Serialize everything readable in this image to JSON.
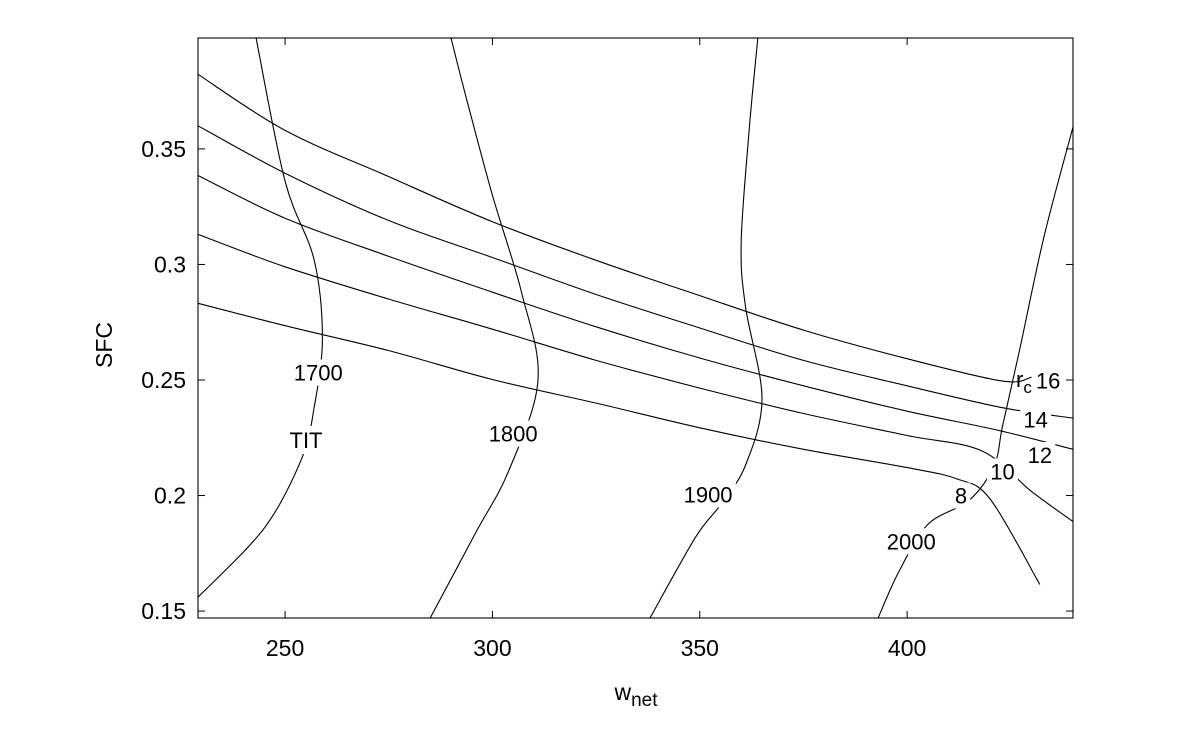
{
  "chart_data": {
    "type": "line",
    "xlabel": "w",
    "xlabel_sub": "net",
    "ylabel": "SFC",
    "xlim": [
      229,
      440
    ],
    "ylim": [
      0.147,
      0.398
    ],
    "x_ticks": [
      250,
      300,
      350,
      400
    ],
    "x_tick_labels": [
      "250",
      "300",
      "350",
      "400"
    ],
    "y_ticks": [
      0.15,
      0.2,
      0.25,
      0.3,
      0.35
    ],
    "y_tick_labels": [
      "0.15",
      "0.2",
      "0.25",
      "0.3",
      "0.35"
    ],
    "grid": false,
    "rc_family_label": "r",
    "rc_family_label_sub": "c",
    "tit_family_label": "TIT",
    "series": [
      {
        "group": "rc",
        "name": "8",
        "points": [
          [
            229,
            0.2832
          ],
          [
            250,
            0.2735
          ],
          [
            275,
            0.2627
          ],
          [
            300,
            0.2502
          ],
          [
            325,
            0.24
          ],
          [
            350,
            0.2293
          ],
          [
            375,
            0.22
          ],
          [
            400,
            0.2121
          ],
          [
            412,
            0.2072
          ],
          [
            420,
            0.1985
          ],
          [
            432,
            0.1615
          ]
        ],
        "label": "8",
        "label_at": [
          413,
          0.2
        ]
      },
      {
        "group": "rc",
        "name": "10",
        "points": [
          [
            229,
            0.313
          ],
          [
            250,
            0.299
          ],
          [
            275,
            0.285
          ],
          [
            300,
            0.272
          ],
          [
            325,
            0.2585
          ],
          [
            350,
            0.2465
          ],
          [
            375,
            0.2355
          ],
          [
            400,
            0.226
          ],
          [
            418,
            0.2193
          ],
          [
            430,
            0.2018
          ],
          [
            440,
            0.1887
          ]
        ],
        "label": "10",
        "label_at": [
          423,
          0.2104
        ]
      },
      {
        "group": "rc",
        "name": "12",
        "points": [
          [
            229,
            0.3385
          ],
          [
            250,
            0.32
          ],
          [
            275,
            0.3035
          ],
          [
            300,
            0.288
          ],
          [
            325,
            0.273
          ],
          [
            350,
            0.2595
          ],
          [
            375,
            0.2475
          ],
          [
            400,
            0.2365
          ],
          [
            422,
            0.2282
          ],
          [
            440,
            0.22
          ]
        ],
        "label": "12",
        "label_at": [
          432,
          0.2175
        ]
      },
      {
        "group": "rc",
        "name": "14",
        "points": [
          [
            229,
            0.36
          ],
          [
            250,
            0.3395
          ],
          [
            275,
            0.319
          ],
          [
            300,
            0.303
          ],
          [
            325,
            0.287
          ],
          [
            350,
            0.2725
          ],
          [
            375,
            0.2585
          ],
          [
            400,
            0.2475
          ],
          [
            423,
            0.238
          ],
          [
            440,
            0.2335
          ]
        ],
        "label": "14",
        "label_at": [
          431,
          0.2328
        ]
      },
      {
        "group": "rc",
        "name": "16",
        "points": [
          [
            229,
            0.3823
          ],
          [
            250,
            0.358
          ],
          [
            275,
            0.338
          ],
          [
            300,
            0.3185
          ],
          [
            325,
            0.3018
          ],
          [
            350,
            0.2865
          ],
          [
            375,
            0.2716
          ],
          [
            400,
            0.2592
          ],
          [
            423,
            0.2495
          ],
          [
            430,
            0.2512
          ]
        ],
        "label": "16",
        "label_at": [
          434,
          0.2497
        ]
      },
      {
        "group": "tit",
        "name": "1700",
        "points": [
          [
            229,
            0.156
          ],
          [
            245,
            0.186
          ],
          [
            254,
            0.216
          ],
          [
            257,
            0.238
          ],
          [
            259,
            0.268
          ],
          [
            257,
            0.302
          ],
          [
            250,
            0.336
          ],
          [
            243,
            0.398
          ]
        ],
        "label": "1700",
        "label_at": [
          258,
          0.2532
        ]
      },
      {
        "group": "tit",
        "name": "1800",
        "points": [
          [
            285,
            0.147
          ],
          [
            296,
            0.184
          ],
          [
            304,
            0.211
          ],
          [
            311,
            0.25
          ],
          [
            307,
            0.288
          ],
          [
            300,
            0.33
          ],
          [
            294,
            0.37
          ],
          [
            290,
            0.398
          ]
        ],
        "label": "1800",
        "label_at": [
          305,
          0.2268
        ]
      },
      {
        "group": "tit",
        "name": "1900",
        "points": [
          [
            338,
            0.147
          ],
          [
            349,
            0.182
          ],
          [
            355,
            0.196
          ],
          [
            361,
            0.213
          ],
          [
            365,
            0.242
          ],
          [
            361,
            0.282
          ],
          [
            360,
            0.31
          ],
          [
            362,
            0.36
          ],
          [
            364,
            0.398
          ]
        ],
        "label": "1900",
        "label_at": [
          352,
          0.2005
        ]
      },
      {
        "group": "tit",
        "name": "2000",
        "points": [
          [
            393,
            0.147
          ],
          [
            398,
            0.167
          ],
          [
            405,
            0.1875
          ],
          [
            415,
            0.198
          ],
          [
            421,
            0.213
          ],
          [
            423,
            0.23
          ],
          [
            427,
            0.262
          ],
          [
            433,
            0.312
          ],
          [
            440,
            0.3595
          ]
        ],
        "label": "2000",
        "label_at": [
          401,
          0.1802
        ]
      }
    ]
  }
}
